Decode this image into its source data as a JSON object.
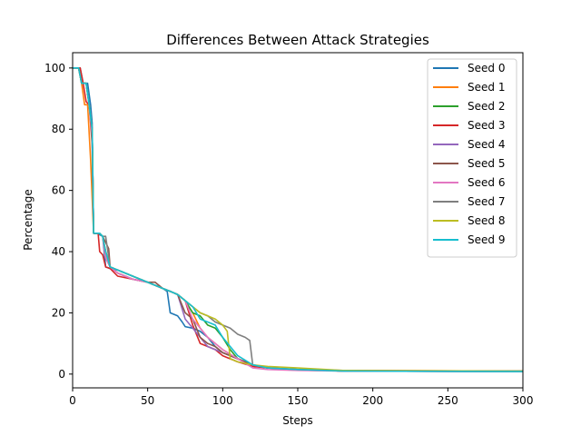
{
  "chart_data": {
    "type": "line",
    "title": "Differences Between Attack Strategies",
    "xlabel": "Steps",
    "ylabel": "Percentage",
    "xlim": [
      0,
      300
    ],
    "ylim": [
      -4.5,
      105
    ],
    "xticks": [
      0,
      50,
      100,
      150,
      200,
      250,
      300
    ],
    "yticks": [
      0,
      20,
      40,
      60,
      80,
      100
    ],
    "grid": false,
    "legend_position": "top-right",
    "series": [
      {
        "name": "Seed 0",
        "color": "#1f77b4",
        "x": [
          0,
          5,
          7,
          10,
          12,
          13,
          14,
          16,
          20,
          22,
          25,
          30,
          40,
          50,
          60,
          63,
          65,
          70,
          73,
          75,
          80,
          85,
          90,
          95,
          100,
          110,
          120,
          130,
          150,
          180,
          300
        ],
        "y": [
          100,
          100,
          95,
          95,
          88,
          82,
          46,
          46,
          45,
          35,
          34.5,
          34,
          32,
          30,
          28,
          27,
          20,
          19,
          17,
          15.5,
          15,
          14,
          12,
          9,
          7,
          5,
          3,
          2,
          1.5,
          1,
          1
        ]
      },
      {
        "name": "Seed 1",
        "color": "#ff7f0e",
        "x": [
          0,
          4,
          6,
          8,
          10,
          12,
          14,
          18,
          20,
          22,
          25,
          30,
          40,
          50,
          60,
          65,
          70,
          75,
          80,
          85,
          90,
          95,
          100,
          110,
          120,
          130,
          150,
          180,
          300
        ],
        "y": [
          100,
          100,
          95,
          88,
          88,
          70,
          46,
          46,
          45,
          38,
          35,
          33,
          31,
          30,
          28,
          27,
          26,
          24,
          20,
          15,
          12,
          10,
          8,
          5,
          3,
          2,
          1.3,
          1,
          0.8
        ]
      },
      {
        "name": "Seed 2",
        "color": "#2ca02c",
        "x": [
          0,
          4,
          6,
          9,
          11,
          13,
          14,
          18,
          20,
          22,
          25,
          30,
          40,
          50,
          60,
          65,
          70,
          75,
          80,
          85,
          90,
          95,
          100,
          105,
          110,
          120,
          130,
          150,
          180,
          300
        ],
        "y": [
          100,
          100,
          95,
          95,
          88,
          80,
          46,
          46,
          45,
          40,
          35,
          33,
          31,
          30,
          28,
          27,
          26,
          24,
          20,
          19,
          16,
          15,
          12,
          8,
          5,
          3,
          2,
          1.5,
          1,
          1
        ]
      },
      {
        "name": "Seed 3",
        "color": "#d62728",
        "x": [
          0,
          5,
          7,
          9,
          11,
          13,
          14,
          17,
          18,
          20,
          22,
          25,
          30,
          40,
          50,
          60,
          65,
          70,
          75,
          80,
          85,
          90,
          95,
          100,
          110,
          120,
          130,
          150,
          180,
          300
        ],
        "y": [
          100,
          100,
          95,
          89,
          88,
          75,
          46,
          46,
          40,
          39,
          35,
          34.5,
          32,
          31,
          30,
          28,
          27,
          26,
          24,
          16,
          10,
          9,
          8,
          6,
          4,
          2.5,
          2,
          1.5,
          1.2,
          1
        ]
      },
      {
        "name": "Seed 4",
        "color": "#9467bd",
        "x": [
          0,
          4,
          6,
          9,
          11,
          13,
          14,
          18,
          20,
          22,
          25,
          30,
          40,
          50,
          60,
          65,
          70,
          75,
          80,
          85,
          90,
          95,
          100,
          110,
          120,
          130,
          150,
          180,
          300
        ],
        "y": [
          100,
          100,
          95,
          95,
          88,
          80,
          46,
          46,
          45,
          38,
          35,
          33,
          31,
          30,
          28,
          27,
          26,
          18,
          15,
          12,
          9,
          8,
          7,
          5,
          3,
          2,
          1.5,
          1,
          0.8
        ]
      },
      {
        "name": "Seed 5",
        "color": "#8c564b",
        "x": [
          0,
          4,
          6,
          9,
          11,
          13,
          14,
          18,
          20,
          24,
          25,
          30,
          40,
          50,
          55,
          60,
          65,
          70,
          75,
          80,
          85,
          90,
          95,
          100,
          110,
          120,
          130,
          150,
          180,
          300
        ],
        "y": [
          100,
          100,
          95,
          95,
          88,
          80,
          46,
          46,
          45,
          41,
          35,
          34,
          32,
          30,
          30,
          28,
          27,
          26,
          20,
          18,
          12,
          10,
          9,
          7,
          5,
          3,
          2,
          1.5,
          1,
          1
        ]
      },
      {
        "name": "Seed 6",
        "color": "#e377c2",
        "x": [
          0,
          4,
          6,
          9,
          11,
          13,
          14,
          18,
          20,
          22,
          25,
          30,
          40,
          50,
          60,
          65,
          70,
          75,
          80,
          85,
          90,
          95,
          100,
          110,
          120,
          130,
          150,
          180,
          300
        ],
        "y": [
          100,
          100,
          95,
          95,
          88,
          78,
          46,
          46,
          45,
          38,
          35,
          33,
          31,
          30,
          28,
          27,
          26,
          24,
          18,
          15,
          12,
          10,
          8,
          5,
          2,
          1.5,
          1.2,
          1,
          0.8
        ]
      },
      {
        "name": "Seed 7",
        "color": "#7f7f7f",
        "x": [
          0,
          4,
          6,
          9,
          11,
          13,
          14,
          18,
          20,
          22,
          25,
          30,
          40,
          50,
          60,
          65,
          70,
          75,
          80,
          85,
          90,
          95,
          100,
          105,
          110,
          115,
          118,
          120,
          130,
          150,
          180,
          300
        ],
        "y": [
          100,
          100,
          95,
          95,
          88,
          80,
          46,
          46,
          45,
          45,
          35,
          34,
          32,
          30,
          28,
          27,
          26,
          24,
          22,
          20,
          19,
          17,
          16,
          15,
          13,
          12,
          11,
          3,
          2,
          1.5,
          1,
          1
        ]
      },
      {
        "name": "Seed 8",
        "color": "#bcbd22",
        "x": [
          0,
          4,
          6,
          9,
          11,
          13,
          14,
          18,
          20,
          22,
          25,
          30,
          40,
          50,
          60,
          65,
          70,
          75,
          80,
          85,
          90,
          95,
          100,
          103,
          105,
          110,
          120,
          130,
          150,
          180,
          300
        ],
        "y": [
          100,
          100,
          95,
          95,
          88,
          80,
          46,
          46,
          45,
          40,
          35,
          34,
          32,
          30,
          28,
          27,
          26,
          24,
          22,
          20,
          19,
          18,
          16,
          14,
          5,
          4,
          3,
          2.5,
          2,
          1.2,
          1
        ]
      },
      {
        "name": "Seed 9",
        "color": "#17becf",
        "x": [
          0,
          4,
          6,
          9,
          11,
          13,
          14,
          18,
          20,
          22,
          25,
          30,
          40,
          50,
          60,
          65,
          70,
          75,
          80,
          85,
          90,
          95,
          100,
          110,
          120,
          130,
          150,
          180,
          300
        ],
        "y": [
          100,
          100,
          95,
          95,
          88,
          80,
          46,
          46,
          45,
          40,
          35,
          34,
          32,
          30,
          28,
          27,
          26,
          24,
          22,
          18,
          17,
          16,
          12,
          6,
          3,
          2,
          1.5,
          1,
          0.8
        ]
      }
    ]
  }
}
